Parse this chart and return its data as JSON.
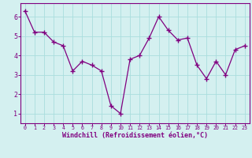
{
  "x_values": [
    0,
    1,
    2,
    3,
    4,
    5,
    6,
    7,
    8,
    9,
    10,
    11,
    12,
    13,
    14,
    15,
    16,
    17,
    18,
    19,
    20,
    21,
    22,
    23
  ],
  "y_values": [
    6.3,
    5.2,
    5.2,
    4.7,
    4.5,
    3.2,
    3.7,
    3.5,
    3.2,
    1.4,
    1.0,
    3.8,
    4.0,
    4.9,
    6.0,
    5.3,
    4.8,
    4.9,
    3.5,
    2.8,
    3.7,
    3.0,
    4.3,
    4.5
  ],
  "line_color": "#800080",
  "marker_color": "#800080",
  "bg_color": "#d4f0f0",
  "grid_color": "#aadddd",
  "xlabel": "Windchill (Refroidissement éolien,°C)",
  "xlabel_color": "#800080",
  "tick_color": "#800080",
  "spine_color": "#800080",
  "xlim_min": -0.5,
  "xlim_max": 23.5,
  "ylim_min": 0.5,
  "ylim_max": 6.7,
  "yticks": [
    1,
    2,
    3,
    4,
    5,
    6
  ],
  "xticks": [
    0,
    1,
    2,
    3,
    4,
    5,
    6,
    7,
    8,
    9,
    10,
    11,
    12,
    13,
    14,
    15,
    16,
    17,
    18,
    19,
    20,
    21,
    22,
    23
  ],
  "xlabel_fontsize": 6.0,
  "xtick_fontsize": 4.8,
  "ytick_fontsize": 6.0,
  "linewidth": 0.9,
  "markersize": 4.0,
  "markeredgewidth": 1.0
}
